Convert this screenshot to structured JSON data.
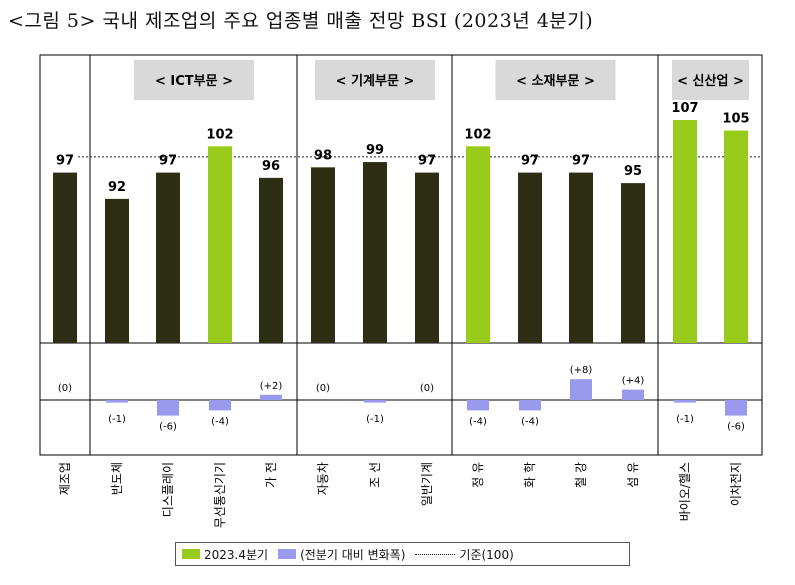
{
  "title": "<그림 5> 국내 제조업의 주요 업종별 매출 전망 BSI (2023년 4분기)",
  "colors": {
    "current_dark": "#2e2e14",
    "current_highlight": "#99cc1a",
    "change": "#9999ee",
    "segment_bg": "#d9d9d9"
  },
  "chart_data": {
    "type": "bar",
    "title": "<그림 5> 국내 제조업의 주요 업종별 매출 전망 BSI (2023년 4분기)",
    "categories": [
      "제조업",
      "반도체",
      "디스플레이",
      "무선통신기기",
      "가 전",
      "자동차",
      "조 선",
      "일반기계",
      "정 유",
      "화 학",
      "철 강",
      "섬 유",
      "바이오/헬스",
      "이차전지"
    ],
    "series": [
      {
        "name": "2023.4분기",
        "values": [
          97,
          92,
          97,
          102,
          96,
          98,
          99,
          97,
          102,
          97,
          97,
          95,
          107,
          105
        ],
        "highlight": [
          false,
          false,
          false,
          true,
          false,
          false,
          false,
          false,
          true,
          false,
          false,
          false,
          true,
          true
        ]
      },
      {
        "name": "(전분기 대비 변화폭)",
        "values": [
          0,
          -1,
          -6,
          -4,
          2,
          0,
          -1,
          0,
          -4,
          -4,
          8,
          4,
          -1,
          -6
        ]
      }
    ],
    "change_labels": [
      "(0)",
      "(-1)",
      "(-6)",
      "(-4)",
      "(+2)",
      "(0)",
      "(-1)",
      "(0)",
      "(-4)",
      "(-4)",
      "(+8)",
      "(+4)",
      "(-1)",
      "(-6)"
    ],
    "reference": {
      "label": "기준(100)",
      "value": 100
    },
    "segments": [
      {
        "label": "< ICT부문 >",
        "from": 1,
        "to": 4
      },
      {
        "label": "< 기계부문 >",
        "from": 5,
        "to": 7
      },
      {
        "label": "< 소재부문 >",
        "from": 8,
        "to": 11
      },
      {
        "label": "< 신산업 >",
        "from": 12,
        "to": 13
      }
    ],
    "legend": [
      {
        "label": "2023.4분기"
      },
      {
        "label": "(전분기 대비 변화폭)"
      },
      {
        "label": "기준(100)"
      }
    ]
  }
}
